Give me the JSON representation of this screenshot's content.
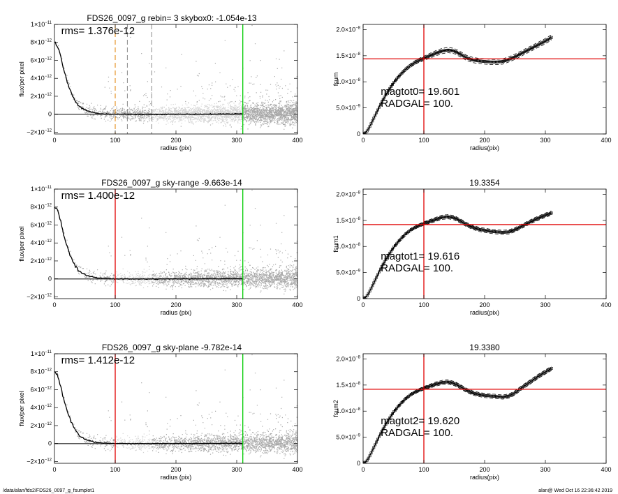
{
  "footer": {
    "left": "/data/alan/fds2/FDS26_0097_g_fsumplot1",
    "right": "alan@  Wed Oct 16 22:36:42 2019"
  },
  "colors": {
    "scatter": "#a8a8a8",
    "scatter_light": "#d4d4d4",
    "profile": "#000000",
    "green": "#00cc00",
    "red": "#e00000",
    "orange": "#e08000",
    "dash": "#888888"
  },
  "chart_data": [
    {
      "id": "profile-0",
      "type": "scatter",
      "title": "FDS26_0097_g rebin= 3    skybox0: -1.054e-13",
      "annotation": "rms= 1.376e-12",
      "xlabel": "radius (pix)",
      "ylabel": "flux/per pixel",
      "xlim": [
        0,
        400
      ],
      "ylim": [
        -2.2e-12,
        1e-11
      ],
      "xticks": [
        0,
        100,
        200,
        300,
        400
      ],
      "xtick_labels": [
        "0",
        "100",
        "200",
        "300",
        "400"
      ],
      "yticks": [
        -2e-12,
        0,
        2e-12,
        4e-12,
        6e-12,
        8e-12,
        1e-11
      ],
      "ytick_labels": [
        [
          "−2×10",
          "−12"
        ],
        [
          "0",
          ""
        ],
        [
          "2×10",
          "−12"
        ],
        [
          "4×10",
          "−12"
        ],
        [
          "6×10",
          "−12"
        ],
        [
          "8×10",
          "−12"
        ],
        [
          "1×10",
          "−11"
        ]
      ],
      "vlines": [
        {
          "x": 310,
          "color": "green",
          "style": "solid"
        },
        {
          "x": 100,
          "color": "orange",
          "style": "dashed"
        },
        {
          "x": 120,
          "color": "dash",
          "style": "dashed"
        },
        {
          "x": 160,
          "color": "dash",
          "style": "dashed"
        }
      ],
      "light_band": [
        160,
        310
      ],
      "profile": [
        [
          0,
          8e-12
        ],
        [
          5,
          7.6e-12
        ],
        [
          10,
          6.5e-12
        ],
        [
          15,
          5e-12
        ],
        [
          20,
          3.8e-12
        ],
        [
          25,
          2.8e-12
        ],
        [
          30,
          2e-12
        ],
        [
          35,
          1.4e-12
        ],
        [
          40,
          9e-13
        ],
        [
          50,
          5e-13
        ],
        [
          60,
          2.5e-13
        ],
        [
          70,
          1e-13
        ],
        [
          80,
          5e-14
        ],
        [
          100,
          0
        ],
        [
          150,
          -2e-14
        ],
        [
          200,
          0
        ],
        [
          250,
          1e-14
        ],
        [
          310,
          5e-14
        ]
      ]
    },
    {
      "id": "profile-1",
      "type": "scatter",
      "title": "FDS26_0097_g sky-range -9.663e-14",
      "annotation": "rms= 1.400e-12",
      "xlabel": "radius (pix)",
      "ylabel": "flux/per pixel",
      "xlim": [
        0,
        400
      ],
      "ylim": [
        -2.2e-12,
        1e-11
      ],
      "xticks": [
        0,
        100,
        200,
        300,
        400
      ],
      "xtick_labels": [
        "0",
        "100",
        "200",
        "300",
        "400"
      ],
      "yticks": [
        -2e-12,
        0,
        2e-12,
        4e-12,
        6e-12,
        8e-12,
        1e-11
      ],
      "ytick_labels": [
        [
          "−2×10",
          "−12"
        ],
        [
          "0",
          ""
        ],
        [
          "2×10",
          "−12"
        ],
        [
          "4×10",
          "−12"
        ],
        [
          "6×10",
          "−12"
        ],
        [
          "8×10",
          "−12"
        ],
        [
          "1×10",
          "−11"
        ]
      ],
      "vlines": [
        {
          "x": 310,
          "color": "green",
          "style": "solid"
        },
        {
          "x": 100,
          "color": "red",
          "style": "solid"
        }
      ],
      "light_band": [
        100,
        160
      ],
      "profile": [
        [
          0,
          8e-12
        ],
        [
          5,
          7.6e-12
        ],
        [
          10,
          6.5e-12
        ],
        [
          15,
          5e-12
        ],
        [
          20,
          3.8e-12
        ],
        [
          25,
          2.8e-12
        ],
        [
          30,
          2e-12
        ],
        [
          35,
          1.4e-12
        ],
        [
          40,
          9e-13
        ],
        [
          50,
          5e-13
        ],
        [
          60,
          2.5e-13
        ],
        [
          70,
          1e-13
        ],
        [
          80,
          5e-14
        ],
        [
          100,
          0
        ],
        [
          150,
          -2e-14
        ],
        [
          200,
          0
        ],
        [
          250,
          1e-14
        ],
        [
          310,
          5e-14
        ]
      ]
    },
    {
      "id": "profile-2",
      "type": "scatter",
      "title": "FDS26_0097_g sky-plane -9.782e-14",
      "annotation": "rms= 1.412e-12",
      "xlabel": "radius (pix)",
      "ylabel": "flux/per pixel",
      "xlim": [
        0,
        400
      ],
      "ylim": [
        -2.2e-12,
        1e-11
      ],
      "xticks": [
        0,
        100,
        200,
        300,
        400
      ],
      "xtick_labels": [
        "0",
        "100",
        "200",
        "300",
        "400"
      ],
      "yticks": [
        -2e-12,
        0,
        2e-12,
        4e-12,
        6e-12,
        8e-12,
        1e-11
      ],
      "ytick_labels": [
        [
          "−2×10",
          "−12"
        ],
        [
          "0",
          ""
        ],
        [
          "2×10",
          "−12"
        ],
        [
          "4×10",
          "−12"
        ],
        [
          "6×10",
          "−12"
        ],
        [
          "8×10",
          "−12"
        ],
        [
          "1×10",
          "−11"
        ]
      ],
      "vlines": [
        {
          "x": 310,
          "color": "green",
          "style": "solid"
        },
        {
          "x": 100,
          "color": "red",
          "style": "solid"
        }
      ],
      "light_band": [
        100,
        160
      ],
      "profile": [
        [
          0,
          8e-12
        ],
        [
          5,
          7.6e-12
        ],
        [
          10,
          6.5e-12
        ],
        [
          15,
          5e-12
        ],
        [
          20,
          3.8e-12
        ],
        [
          25,
          2.8e-12
        ],
        [
          30,
          2e-12
        ],
        [
          35,
          1.4e-12
        ],
        [
          40,
          9e-13
        ],
        [
          50,
          5e-13
        ],
        [
          60,
          2.5e-13
        ],
        [
          70,
          1e-13
        ],
        [
          80,
          5e-14
        ],
        [
          100,
          0
        ],
        [
          150,
          -2e-14
        ],
        [
          200,
          0
        ],
        [
          250,
          1e-14
        ],
        [
          310,
          5e-14
        ]
      ]
    },
    {
      "id": "fsum-0",
      "type": "line",
      "title": "",
      "xlabel": "radius(pix)",
      "ylabel": "fsum",
      "xlim": [
        0,
        400
      ],
      "ylim": [
        0,
        2.1e-08
      ],
      "xticks": [
        0,
        100,
        200,
        300,
        400
      ],
      "xtick_labels": [
        "0",
        "100",
        "200",
        "300",
        "400"
      ],
      "yticks": [
        0,
        5e-09,
        1e-08,
        1.5e-08,
        2e-08
      ],
      "ytick_labels": [
        [
          "0",
          ""
        ],
        [
          "5.0×10",
          "−9"
        ],
        [
          "1.0×10",
          "−8"
        ],
        [
          "1.5×10",
          "−8"
        ],
        [
          "2.0×10",
          "−8"
        ]
      ],
      "annotations": [
        "magtot0=  19.601",
        "RADGAL=    100."
      ],
      "vline_x": 100,
      "hline_y": 1.44e-08,
      "curve": [
        [
          0,
          0
        ],
        [
          5,
          3e-10
        ],
        [
          10,
          1.2e-09
        ],
        [
          20,
          3.6e-09
        ],
        [
          30,
          6e-09
        ],
        [
          40,
          8e-09
        ],
        [
          50,
          9.8e-09
        ],
        [
          60,
          1.12e-08
        ],
        [
          70,
          1.24e-08
        ],
        [
          80,
          1.33e-08
        ],
        [
          90,
          1.4e-08
        ],
        [
          100,
          1.45e-08
        ],
        [
          110,
          1.5e-08
        ],
        [
          120,
          1.55e-08
        ],
        [
          130,
          1.59e-08
        ],
        [
          140,
          1.61e-08
        ],
        [
          150,
          1.59e-08
        ],
        [
          160,
          1.53e-08
        ],
        [
          170,
          1.46e-08
        ],
        [
          180,
          1.42e-08
        ],
        [
          190,
          1.4e-08
        ],
        [
          200,
          1.39e-08
        ],
        [
          210,
          1.38e-08
        ],
        [
          220,
          1.38e-08
        ],
        [
          230,
          1.39e-08
        ],
        [
          240,
          1.43e-08
        ],
        [
          250,
          1.48e-08
        ],
        [
          260,
          1.54e-08
        ],
        [
          270,
          1.6e-08
        ],
        [
          280,
          1.66e-08
        ],
        [
          290,
          1.72e-08
        ],
        [
          300,
          1.78e-08
        ],
        [
          310,
          1.85e-08
        ]
      ],
      "spread": 5e-10
    },
    {
      "id": "fsum-1",
      "type": "line",
      "title": "19.3354",
      "xlabel": "radius(pix)",
      "ylabel": "fsum1",
      "xlim": [
        0,
        400
      ],
      "ylim": [
        0,
        2.1e-08
      ],
      "xticks": [
        0,
        100,
        200,
        300,
        400
      ],
      "xtick_labels": [
        "0",
        "100",
        "200",
        "300",
        "400"
      ],
      "yticks": [
        0,
        5e-09,
        1e-08,
        1.5e-08,
        2e-08
      ],
      "ytick_labels": [
        [
          "0",
          ""
        ],
        [
          "5.0×10",
          "−9"
        ],
        [
          "1.0×10",
          "−8"
        ],
        [
          "1.5×10",
          "−8"
        ],
        [
          "2.0×10",
          "−8"
        ]
      ],
      "annotations": [
        "magtot1=  19.616",
        "RADGAL=    100."
      ],
      "vline_x": 100,
      "hline_y": 1.42e-08,
      "curve": [
        [
          0,
          0
        ],
        [
          5,
          3e-10
        ],
        [
          10,
          1.2e-09
        ],
        [
          20,
          3.6e-09
        ],
        [
          30,
          6e-09
        ],
        [
          40,
          8e-09
        ],
        [
          50,
          9.8e-09
        ],
        [
          60,
          1.12e-08
        ],
        [
          70,
          1.24e-08
        ],
        [
          80,
          1.33e-08
        ],
        [
          90,
          1.39e-08
        ],
        [
          100,
          1.44e-08
        ],
        [
          110,
          1.48e-08
        ],
        [
          120,
          1.52e-08
        ],
        [
          130,
          1.56e-08
        ],
        [
          140,
          1.57e-08
        ],
        [
          150,
          1.55e-08
        ],
        [
          160,
          1.49e-08
        ],
        [
          170,
          1.42e-08
        ],
        [
          180,
          1.37e-08
        ],
        [
          190,
          1.33e-08
        ],
        [
          200,
          1.31e-08
        ],
        [
          210,
          1.29e-08
        ],
        [
          220,
          1.28e-08
        ],
        [
          230,
          1.27e-08
        ],
        [
          240,
          1.28e-08
        ],
        [
          250,
          1.32e-08
        ],
        [
          260,
          1.38e-08
        ],
        [
          270,
          1.44e-08
        ],
        [
          280,
          1.5e-08
        ],
        [
          290,
          1.55e-08
        ],
        [
          300,
          1.6e-08
        ],
        [
          310,
          1.64e-08
        ]
      ],
      "spread": 4e-10
    },
    {
      "id": "fsum-2",
      "type": "line",
      "title": "19.3380",
      "xlabel": "radius(pix)",
      "ylabel": "fsum2",
      "xlim": [
        0,
        400
      ],
      "ylim": [
        0,
        2.1e-08
      ],
      "xticks": [
        0,
        100,
        200,
        300,
        400
      ],
      "xtick_labels": [
        "0",
        "100",
        "200",
        "300",
        "400"
      ],
      "yticks": [
        0,
        5e-09,
        1e-08,
        1.5e-08,
        2e-08
      ],
      "ytick_labels": [
        [
          "0",
          ""
        ],
        [
          "5.0×10",
          "−9"
        ],
        [
          "1.0×10",
          "−8"
        ],
        [
          "1.5×10",
          "−8"
        ],
        [
          "2.0×10",
          "−8"
        ]
      ],
      "annotations": [
        "magtot2=  19.620",
        "RADGAL=    100."
      ],
      "vline_x": 100,
      "hline_y": 1.42e-08,
      "curve": [
        [
          0,
          0
        ],
        [
          5,
          3e-10
        ],
        [
          10,
          1.2e-09
        ],
        [
          20,
          3.6e-09
        ],
        [
          30,
          6e-09
        ],
        [
          40,
          8e-09
        ],
        [
          50,
          9.8e-09
        ],
        [
          60,
          1.12e-08
        ],
        [
          70,
          1.24e-08
        ],
        [
          80,
          1.33e-08
        ],
        [
          90,
          1.39e-08
        ],
        [
          100,
          1.44e-08
        ],
        [
          110,
          1.48e-08
        ],
        [
          120,
          1.52e-08
        ],
        [
          130,
          1.55e-08
        ],
        [
          140,
          1.56e-08
        ],
        [
          150,
          1.53e-08
        ],
        [
          160,
          1.47e-08
        ],
        [
          170,
          1.4e-08
        ],
        [
          180,
          1.35e-08
        ],
        [
          190,
          1.32e-08
        ],
        [
          200,
          1.3e-08
        ],
        [
          210,
          1.29e-08
        ],
        [
          220,
          1.28e-08
        ],
        [
          230,
          1.27e-08
        ],
        [
          240,
          1.29e-08
        ],
        [
          250,
          1.35e-08
        ],
        [
          260,
          1.44e-08
        ],
        [
          270,
          1.52e-08
        ],
        [
          280,
          1.6e-08
        ],
        [
          290,
          1.68e-08
        ],
        [
          300,
          1.75e-08
        ],
        [
          310,
          1.82e-08
        ]
      ],
      "spread": 4e-10
    }
  ]
}
